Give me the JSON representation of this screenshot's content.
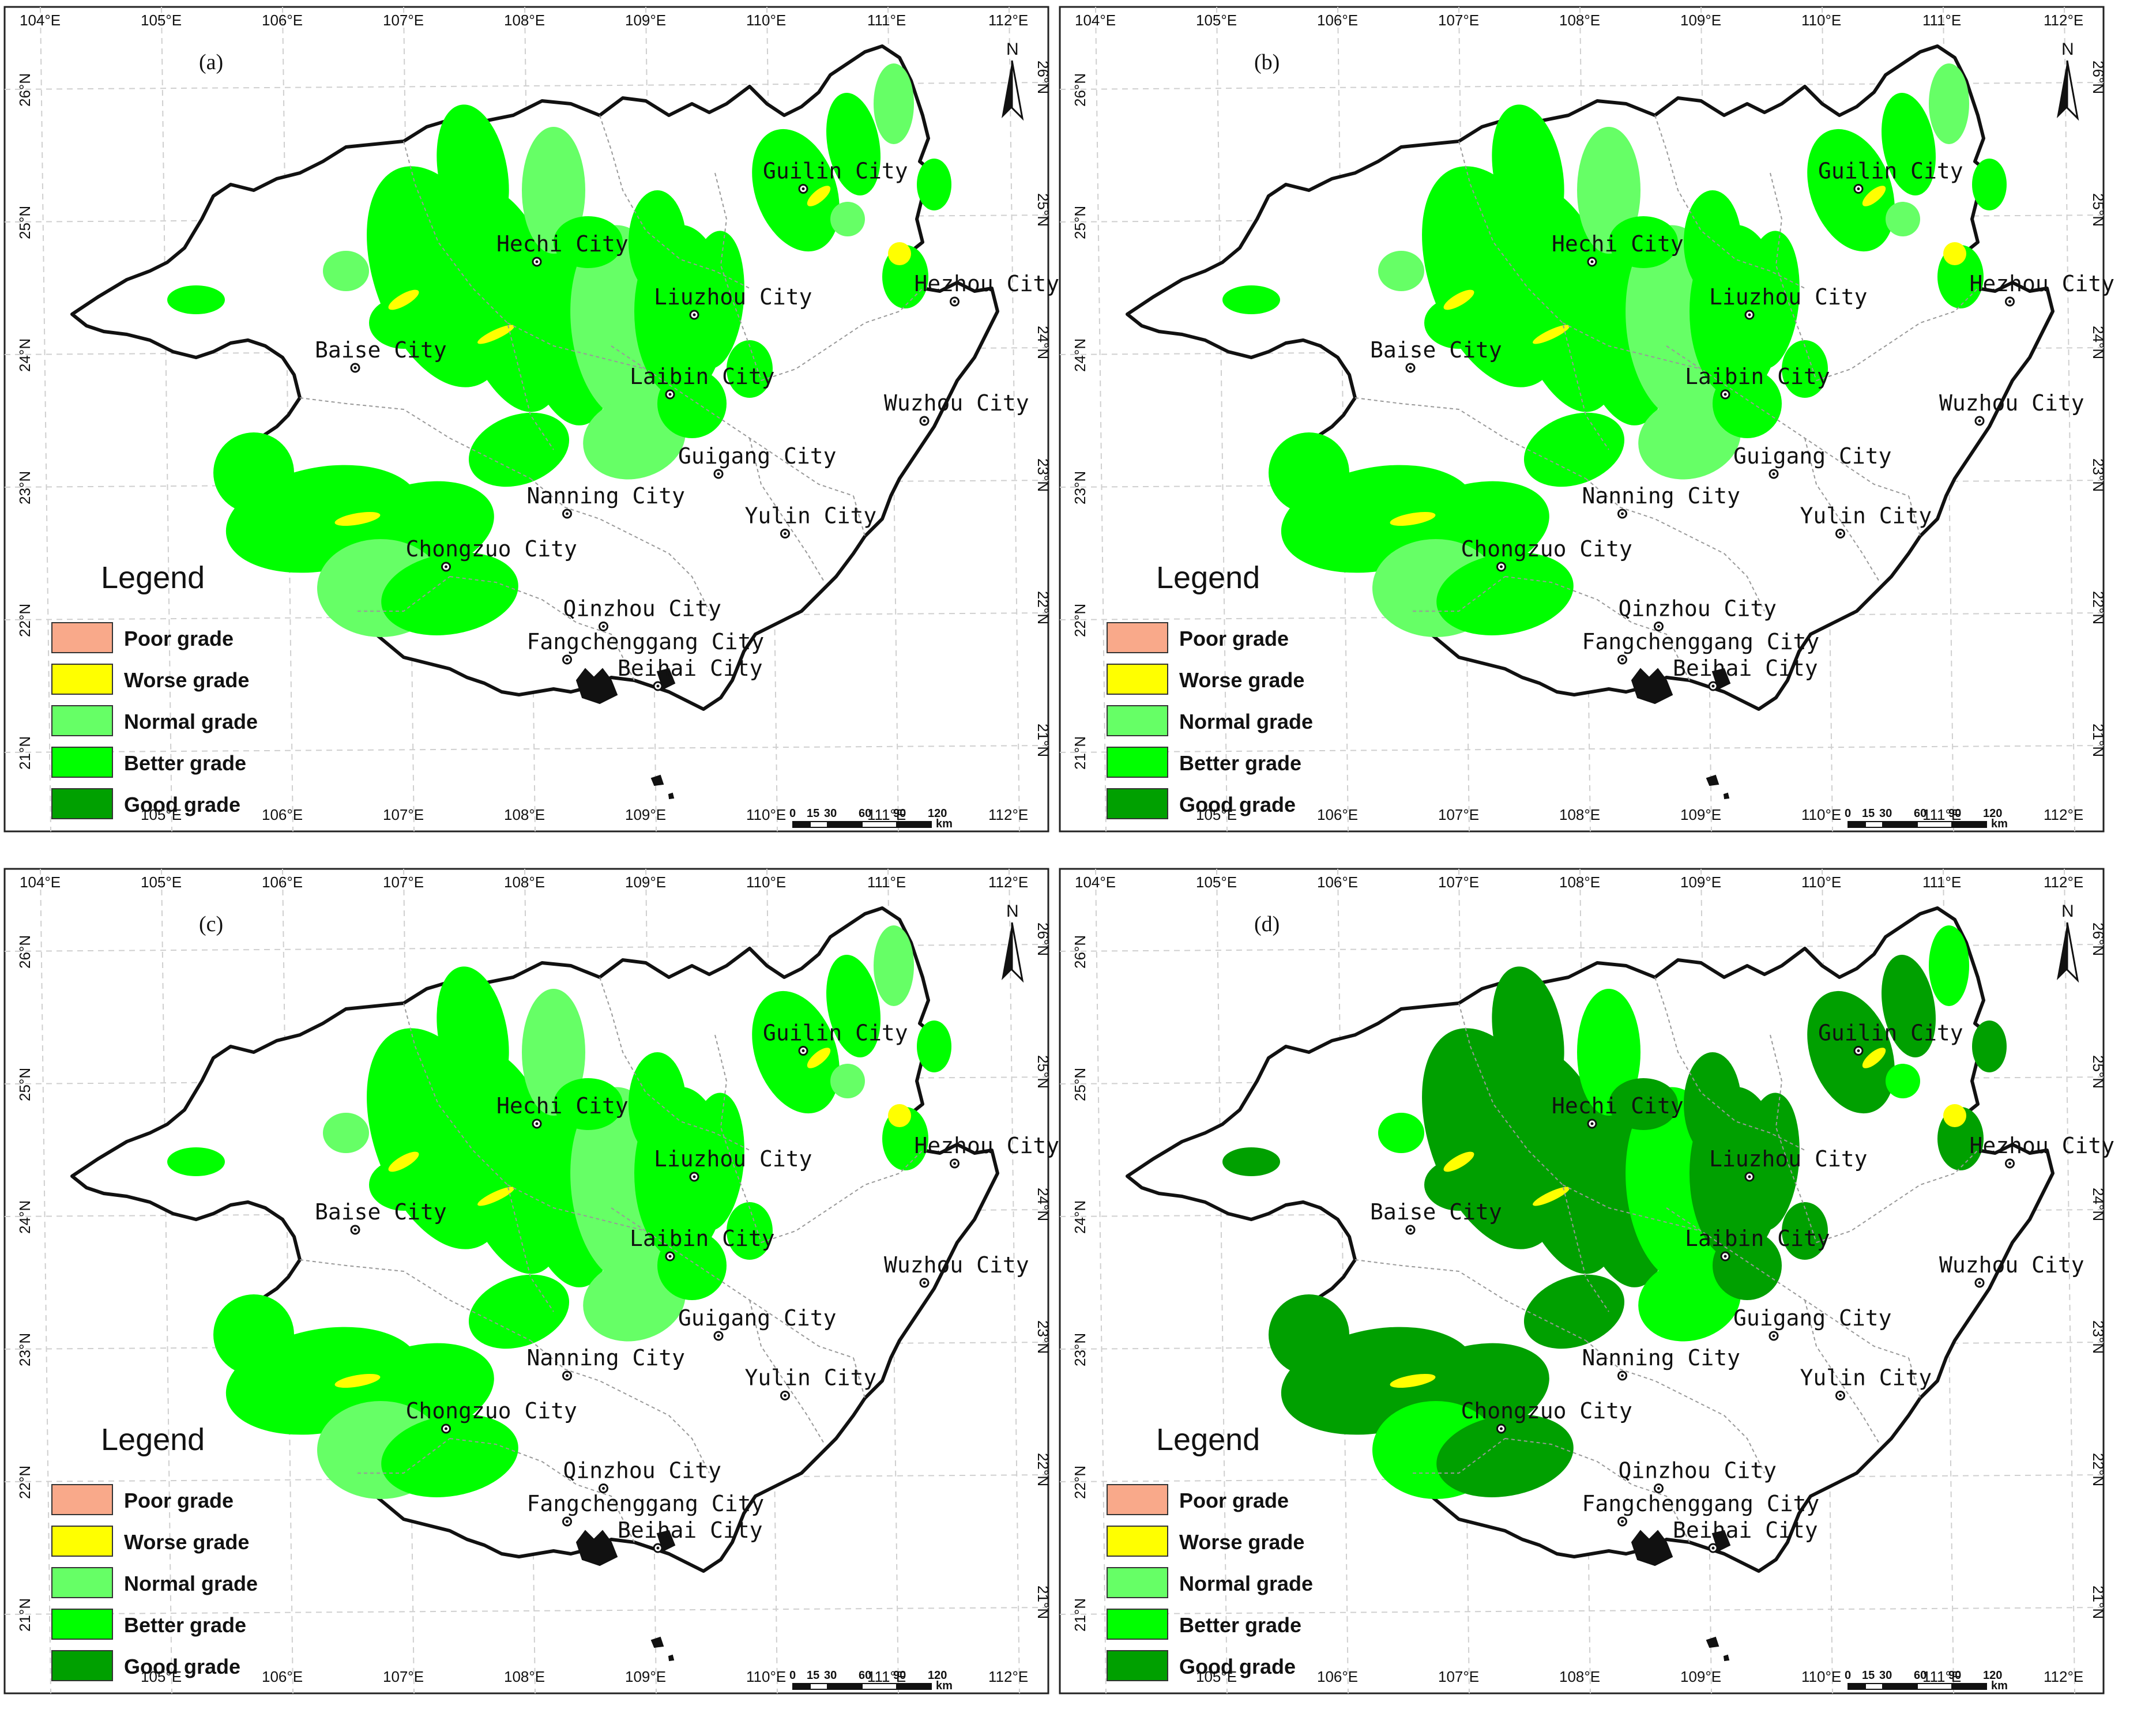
{
  "lon_labels": [
    "104°E",
    "105°E",
    "106°E",
    "107°E",
    "108°E",
    "109°E",
    "110°E",
    "111°E",
    "112°E"
  ],
  "lat_labels": [
    "21°N",
    "22°N",
    "23°N",
    "24°N",
    "25°N",
    "26°N"
  ],
  "north_label": "N",
  "legend": {
    "title": "Legend",
    "items": [
      {
        "label": "Poor grade",
        "color": "#f9a98a"
      },
      {
        "label": "Worse grade",
        "color": "#ffff00"
      },
      {
        "label": "Normal grade",
        "color": "#66ff66"
      },
      {
        "label": "Better grade",
        "color": "#00ff00"
      },
      {
        "label": "Good grade",
        "color": "#00a000"
      }
    ]
  },
  "scale_bar": {
    "ticks": [
      "0",
      "15",
      "30",
      "60",
      "90",
      "120"
    ],
    "unit": "km"
  },
  "cities": [
    {
      "name": "Guilin City",
      "lon": 110.3,
      "lat": 25.25
    },
    {
      "name": "Hechi City",
      "lon": 108.1,
      "lat": 24.7
    },
    {
      "name": "Hezhou City",
      "lon": 111.55,
      "lat": 24.4
    },
    {
      "name": "Liuzhou City",
      "lon": 109.4,
      "lat": 24.3
    },
    {
      "name": "Baise City",
      "lon": 106.6,
      "lat": 23.9
    },
    {
      "name": "Laibin City",
      "lon": 109.2,
      "lat": 23.7
    },
    {
      "name": "Wuzhou City",
      "lon": 111.3,
      "lat": 23.5
    },
    {
      "name": "Guigang City",
      "lon": 109.6,
      "lat": 23.1
    },
    {
      "name": "Nanning City",
      "lon": 108.35,
      "lat": 22.8
    },
    {
      "name": "Yulin City",
      "lon": 110.15,
      "lat": 22.65
    },
    {
      "name": "Chongzuo City",
      "lon": 107.35,
      "lat": 22.4
    },
    {
      "name": "Qinzhou City",
      "lon": 108.65,
      "lat": 21.95
    },
    {
      "name": "Fangchenggang City",
      "lon": 108.35,
      "lat": 21.7
    },
    {
      "name": "Beihai City",
      "lon": 109.1,
      "lat": 21.5
    }
  ],
  "panels": [
    {
      "label": "(a)",
      "dominant_grade": "Better grade"
    },
    {
      "label": "(b)",
      "dominant_grade": "Better grade"
    },
    {
      "label": "(c)",
      "dominant_grade": "Better grade"
    },
    {
      "label": "(d)",
      "dominant_grade": "Good grade"
    }
  ]
}
